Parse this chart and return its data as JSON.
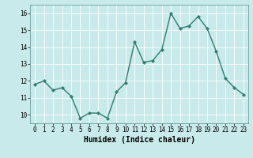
{
  "x": [
    0,
    1,
    2,
    3,
    4,
    5,
    6,
    7,
    8,
    9,
    10,
    11,
    12,
    13,
    14,
    15,
    16,
    17,
    18,
    19,
    20,
    21,
    22,
    23
  ],
  "y": [
    11.8,
    12.0,
    11.45,
    11.6,
    11.1,
    9.8,
    10.1,
    10.1,
    9.8,
    11.35,
    11.9,
    14.3,
    13.1,
    13.2,
    13.85,
    16.0,
    15.1,
    15.25,
    15.8,
    15.1,
    13.75,
    12.15,
    11.6,
    11.2
  ],
  "line_color": "#2e7d6e",
  "marker": "D",
  "marker_size": 2.2,
  "linewidth": 1.0,
  "background_color": "#c8eaea",
  "grid_color": "#ffffff",
  "xlabel": "Humidex (Indice chaleur)",
  "xlabel_fontsize": 7,
  "tick_fontsize": 5.5,
  "ylim": [
    9.5,
    16.5
  ],
  "xlim": [
    -0.5,
    23.5
  ],
  "yticks": [
    10,
    11,
    12,
    13,
    14,
    15,
    16
  ],
  "xticks": [
    0,
    1,
    2,
    3,
    4,
    5,
    6,
    7,
    8,
    9,
    10,
    11,
    12,
    13,
    14,
    15,
    16,
    17,
    18,
    19,
    20,
    21,
    22,
    23
  ]
}
